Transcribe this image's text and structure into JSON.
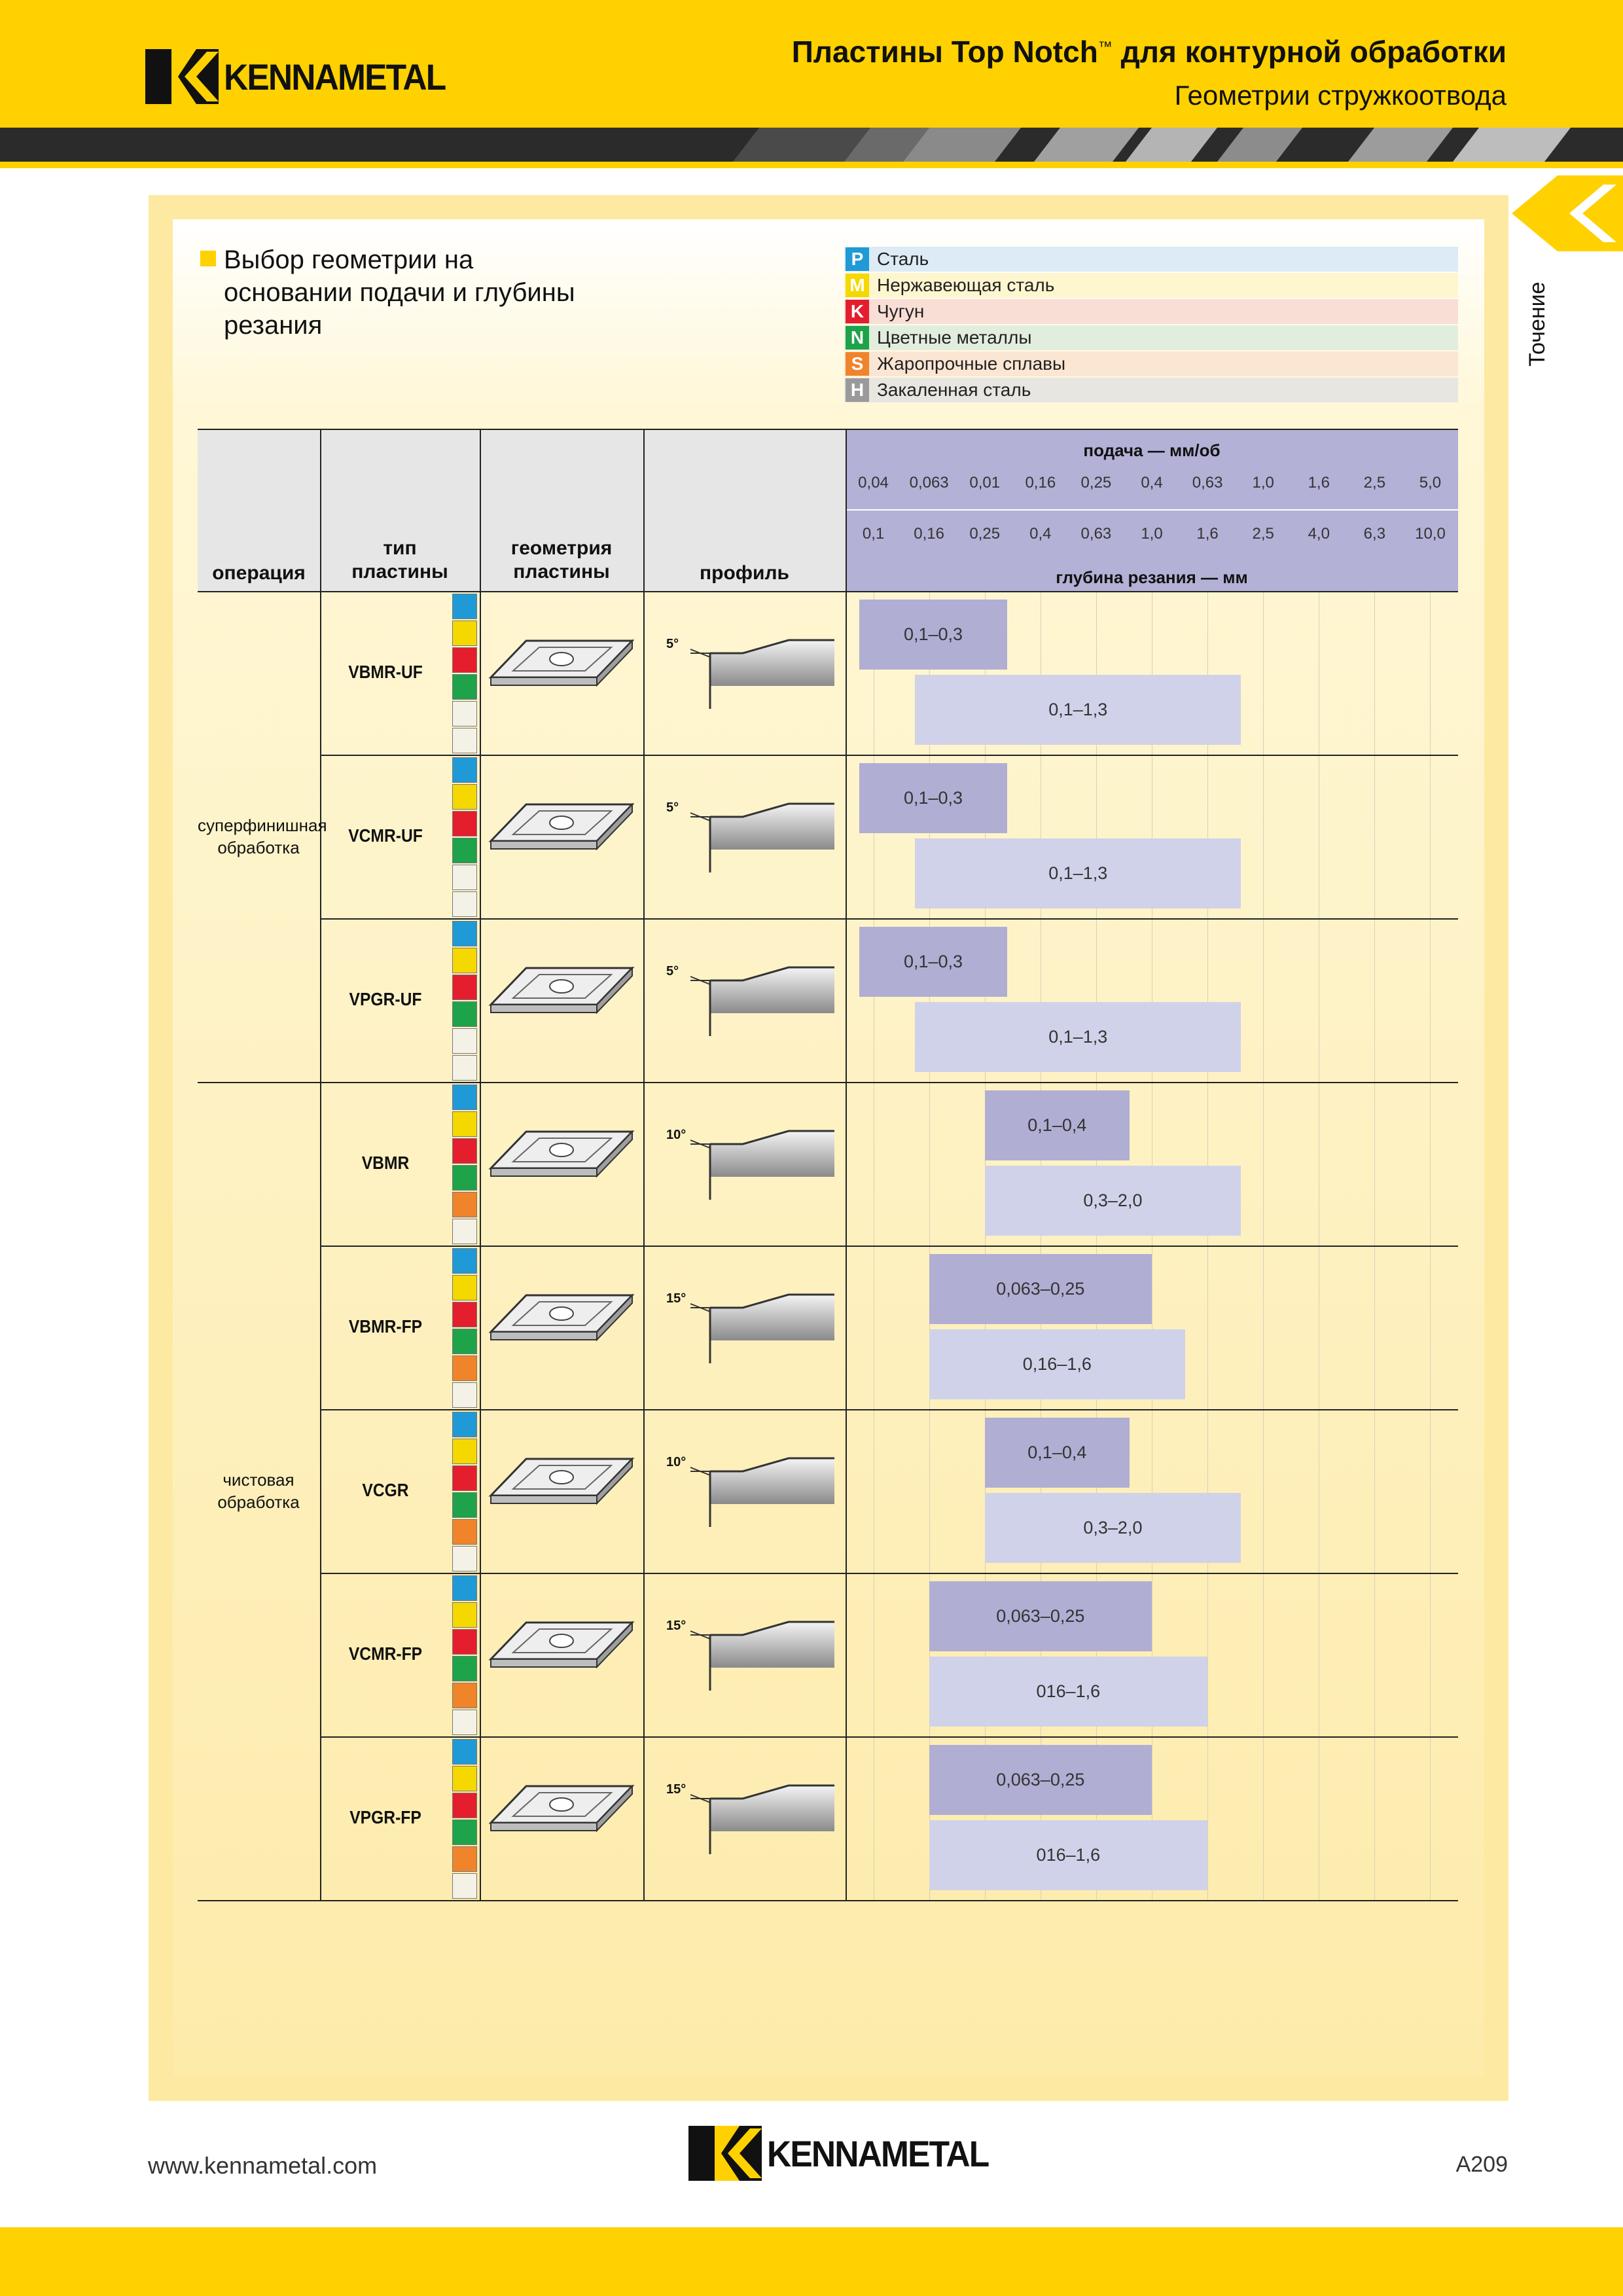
{
  "header": {
    "brand": "KENNAMETAL",
    "title": "Пластины Top Notch",
    "title_mark": "™",
    "title_suffix": " для контурной обработки",
    "subtitle": "Геометрии стружкоотвода"
  },
  "side_tab": {
    "label": "Точение"
  },
  "heading": "Выбор геометрии на основании подачи и глубины резания",
  "legend": [
    {
      "code": "P",
      "label": "Сталь",
      "color": "#1f9ad6",
      "bg": "#dcebf6"
    },
    {
      "code": "M",
      "label": "Нержавеющая сталь",
      "color": "#f5d800",
      "bg": "#fdf6cf"
    },
    {
      "code": "K",
      "label": "Чугун",
      "color": "#e41e2d",
      "bg": "#f9ded6"
    },
    {
      "code": "N",
      "label": "Цветные металлы",
      "color": "#1ea24a",
      "bg": "#e2eedd"
    },
    {
      "code": "S",
      "label": "Жаропрочные сплавы",
      "color": "#f0842a",
      "bg": "#fbe6d3"
    },
    {
      "code": "H",
      "label": "Закаленная сталь",
      "color": "#9a9a9a",
      "bg": "#e8e6e1"
    }
  ],
  "table": {
    "headers": {
      "operation": "операция",
      "insert_type_1": "тип",
      "insert_type_2": "пластины",
      "geometry_1": "геометрия",
      "geometry_2": "пластины",
      "profile": "профиль",
      "feed": "подача — мм/об",
      "depth": "глубина резания — мм"
    },
    "feed_scale": [
      "0,04",
      "0,063",
      "0,01",
      "0,16",
      "0,25",
      "0,4",
      "0,63",
      "1,0",
      "1,6",
      "2,5",
      "5,0"
    ],
    "depth_scale": [
      "0,1",
      "0,16",
      "0,25",
      "0,4",
      "0,63",
      "1,0",
      "1,6",
      "2,5",
      "4,0",
      "6,3",
      "10,0"
    ],
    "operations": [
      {
        "label": "суперфинишная обработка",
        "rows": 3
      },
      {
        "label": "чистовая обработка",
        "rows": 5
      }
    ],
    "rows": [
      {
        "type": "VBMR-UF",
        "angle": "5°",
        "materials": [
          "P",
          "M",
          "K",
          "N",
          "",
          ""
        ],
        "feed_range": "0,1–0,3",
        "feed_pos": [
          0.25,
          2.9
        ],
        "depth_range": "0,1–1,3",
        "depth_pos": [
          1.25,
          7.1
        ]
      },
      {
        "type": "VCMR-UF",
        "angle": "5°",
        "materials": [
          "P",
          "M",
          "K",
          "N",
          "",
          ""
        ],
        "feed_range": "0,1–0,3",
        "feed_pos": [
          0.25,
          2.9
        ],
        "depth_range": "0,1–1,3",
        "depth_pos": [
          1.25,
          7.1
        ]
      },
      {
        "type": "VPGR-UF",
        "angle": "5°",
        "materials": [
          "P",
          "M",
          "K",
          "N",
          "",
          ""
        ],
        "feed_range": "0,1–0,3",
        "feed_pos": [
          0.25,
          2.9
        ],
        "depth_range": "0,1–1,3",
        "depth_pos": [
          1.25,
          7.1
        ]
      },
      {
        "type": "VBMR",
        "angle": "10°",
        "materials": [
          "P",
          "M",
          "K",
          "N",
          "S",
          ""
        ],
        "feed_range": "0,1–0,4",
        "feed_pos": [
          2.5,
          5.1
        ],
        "depth_range": "0,3–2,0",
        "depth_pos": [
          2.5,
          7.1
        ]
      },
      {
        "type": "VBMR-FP",
        "angle": "15°",
        "materials": [
          "P",
          "M",
          "K",
          "N",
          "S",
          ""
        ],
        "feed_range": "0,063–0,25",
        "feed_pos": [
          1.5,
          5.5
        ],
        "depth_range": "0,16–1,6",
        "depth_pos": [
          1.5,
          6.1
        ]
      },
      {
        "type": "VCGR",
        "angle": "10°",
        "materials": [
          "P",
          "M",
          "K",
          "N",
          "S",
          ""
        ],
        "feed_range": "0,1–0,4",
        "feed_pos": [
          2.5,
          5.1
        ],
        "depth_range": "0,3–2,0",
        "depth_pos": [
          2.5,
          7.1
        ]
      },
      {
        "type": "VCMR-FP",
        "angle": "15°",
        "materials": [
          "P",
          "M",
          "K",
          "N",
          "S",
          ""
        ],
        "feed_range": "0,063–0,25",
        "feed_pos": [
          1.5,
          5.5
        ],
        "depth_range": "016–1,6",
        "depth_pos": [
          1.5,
          6.5
        ]
      },
      {
        "type": "VPGR-FP",
        "angle": "15°",
        "materials": [
          "P",
          "M",
          "K",
          "N",
          "S",
          ""
        ],
        "feed_range": "0,063–0,25",
        "feed_pos": [
          1.5,
          5.5
        ],
        "depth_range": "016–1,6",
        "depth_pos": [
          1.5,
          6.5
        ]
      }
    ]
  },
  "footer": {
    "url": "www.kennametal.com",
    "page": "A209",
    "brand": "KENNAMETAL"
  }
}
